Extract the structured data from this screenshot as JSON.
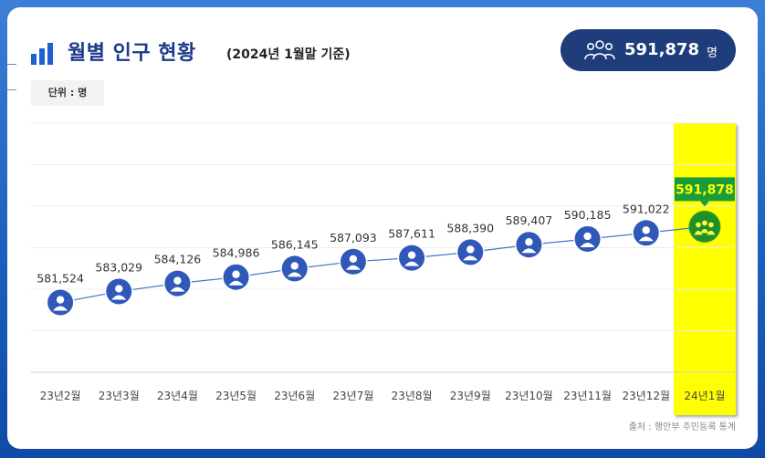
{
  "title": "월별 인구 현황",
  "subtitle": "(2024년 1월말 기준)",
  "total": {
    "value": "591,878",
    "unit": "명",
    "icon": "people-group-icon"
  },
  "unit_label": "단위 : 명",
  "source": "출처 : 행안부 주민등록 통계",
  "colors": {
    "line": "#4a74c9",
    "marker": "#2f58b8",
    "highlight": "#ffff00",
    "badge": "#1e3d7a",
    "tooltip": "#1a9c3c",
    "tooltip_text": "#ffff00"
  },
  "chart_data": {
    "type": "line",
    "categories": [
      "23년2월",
      "23년3월",
      "23년4월",
      "23년5월",
      "23년6월",
      "23년7월",
      "23년8월",
      "23년9월",
      "23년10월",
      "23년11월",
      "23년12월",
      "24년1월"
    ],
    "values": [
      581524,
      583029,
      584126,
      584986,
      586145,
      587093,
      587611,
      588390,
      589407,
      590185,
      591022,
      591878
    ],
    "labels": [
      "581,524",
      "583,029",
      "584,126",
      "584,986",
      "586,145",
      "587,093",
      "587,611",
      "588,390",
      "589,407",
      "590,185",
      "591,022",
      "591,878"
    ],
    "highlight_index": 11,
    "grid": true,
    "ylim": [
      572000,
      606000
    ]
  }
}
